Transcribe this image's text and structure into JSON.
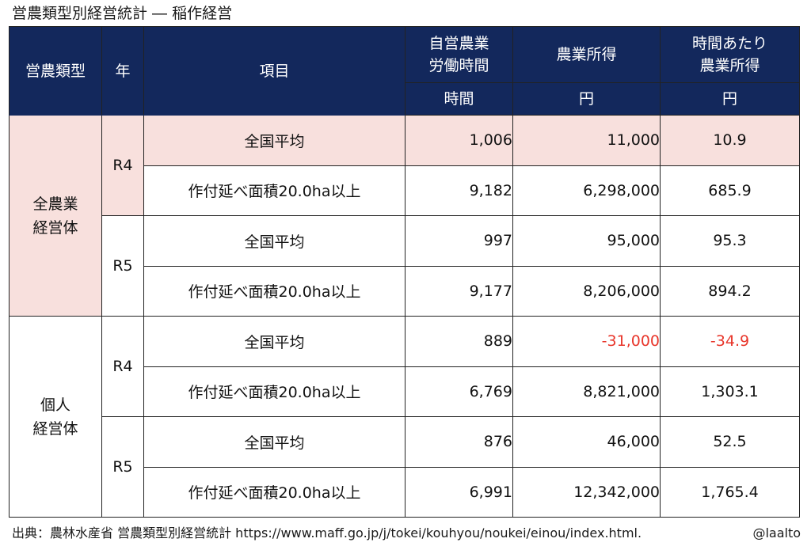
{
  "title": "営農類型別経営統計 ― 稲作経営",
  "header": {
    "type": "営農類型",
    "year": "年",
    "item": "項目",
    "labor_line1": "自営農業",
    "labor_line2": "労働時間",
    "income": "農業所得",
    "rate_line1": "時間あたり",
    "rate_line2": "農業所得",
    "unit_labor": "時間",
    "unit_income": "円",
    "unit_rate": "円"
  },
  "groups": [
    {
      "type_line1": "全農業",
      "type_line2": "経営体",
      "years": [
        {
          "year": "R4",
          "rows": [
            {
              "item": "全国平均",
              "labor": "1,006",
              "income": "11,000",
              "rate": "10.9"
            },
            {
              "item": "作付延べ面積20.0ha以上",
              "labor": "9,182",
              "income": "6,298,000",
              "rate": "685.9"
            }
          ]
        },
        {
          "year": "R5",
          "rows": [
            {
              "item": "全国平均",
              "labor": "997",
              "income": "95,000",
              "rate": "95.3"
            },
            {
              "item": "作付延べ面積20.0ha以上",
              "labor": "9,177",
              "income": "8,206,000",
              "rate": "894.2"
            }
          ]
        }
      ]
    },
    {
      "type_line1": "個人",
      "type_line2": "経営体",
      "years": [
        {
          "year": "R4",
          "rows": [
            {
              "item": "全国平均",
              "labor": "889",
              "income": "-31,000",
              "rate": "-34.9"
            },
            {
              "item": "作付延べ面積20.0ha以上",
              "labor": "6,769",
              "income": "8,821,000",
              "rate": "1,303.1"
            }
          ]
        },
        {
          "year": "R5",
          "rows": [
            {
              "item": "全国平均",
              "labor": "876",
              "income": "46,000",
              "rate": "52.5"
            },
            {
              "item": "作付延べ面積20.0ha以上",
              "labor": "6,991",
              "income": "12,342,000",
              "rate": "1,765.4"
            }
          ]
        }
      ]
    }
  ],
  "colors": {
    "header_bg": "#13285c",
    "highlight_bg": "#f8e0dd",
    "negative": "#e8362b"
  },
  "footer": {
    "source": "出典：農林水産省 営農類型別経営統計 https://www.maff.go.jp/j/tokei/kouhyou/noukei/einou/index.html.",
    "handle": "@laalto"
  }
}
